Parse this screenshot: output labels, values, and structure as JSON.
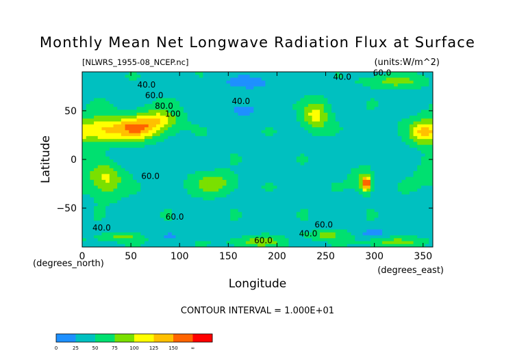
{
  "chart_data": {
    "type": "heatmap",
    "title": "Monthly Mean Net Longwave Radiation Flux at Surface",
    "subtitle_left": "[NLWRS_1955-08_NCEP.nc]",
    "subtitle_right": "(units:W/m^2)",
    "xlabel": "Longitude",
    "ylabel": "Latitude",
    "x_unit_label": "(degrees_east)",
    "y_unit_label": "(degrees_north)",
    "xlim": [
      0,
      360
    ],
    "ylim": [
      -90,
      90
    ],
    "x_ticks": [
      0,
      50,
      100,
      150,
      200,
      250,
      300,
      350
    ],
    "y_ticks": [
      50,
      0,
      -50
    ],
    "x_tick_labels": [
      "0",
      "50",
      "100",
      "150",
      "200",
      "250",
      "300",
      "350"
    ],
    "y_tick_labels": [
      "50",
      "0",
      "−50"
    ],
    "contour_interval_text": "CONTOUR INTERVAL = 1.000E+01",
    "contour_labels": [
      {
        "text": "40.0",
        "lon": 66,
        "lat": 74
      },
      {
        "text": "60.0",
        "lon": 74,
        "lat": 63
      },
      {
        "text": "80.0",
        "lon": 84,
        "lat": 52
      },
      {
        "text": "100",
        "lon": 93,
        "lat": 44
      },
      {
        "text": "40.0",
        "lon": 163,
        "lat": 57
      },
      {
        "text": "40.0",
        "lon": 267,
        "lat": 82
      },
      {
        "text": "60.0",
        "lon": 308,
        "lat": 86
      },
      {
        "text": "60.0",
        "lon": 70,
        "lat": -20
      },
      {
        "text": "60.0",
        "lon": 95,
        "lat": -62
      },
      {
        "text": "40.0",
        "lon": 20,
        "lat": -73
      },
      {
        "text": "60.0",
        "lon": 248,
        "lat": -70
      },
      {
        "text": "40.0",
        "lon": 232,
        "lat": -79
      },
      {
        "text": "60.0",
        "lon": 186,
        "lat": -86
      }
    ],
    "colorbar": {
      "tick_labels": [
        "0",
        "25",
        "50",
        "75",
        "100",
        "125",
        "150",
        "∞"
      ],
      "colors": [
        "#1e90ff",
        "#00c0c0",
        "#00e070",
        "#7ae000",
        "#ffff00",
        "#ffc000",
        "#ff6400",
        "#ff0000"
      ]
    },
    "field": {
      "description_values": "net longwave flux W/m^2",
      "background": 45,
      "features": [
        {
          "lon": 20,
          "lat": 30,
          "rlon": 22,
          "rlat": 14,
          "amp": 80
        },
        {
          "lon": 55,
          "lat": 32,
          "rlon": 20,
          "rlat": 12,
          "amp": 105
        },
        {
          "lon": 80,
          "lat": 40,
          "rlon": 18,
          "rlat": 12,
          "amp": 65
        },
        {
          "lon": 350,
          "lat": 28,
          "rlon": 14,
          "rlat": 12,
          "amp": 80
        },
        {
          "lon": 240,
          "lat": 45,
          "rlon": 12,
          "rlat": 14,
          "amp": 70
        },
        {
          "lon": 25,
          "lat": -20,
          "rlon": 16,
          "rlat": 16,
          "amp": 60
        },
        {
          "lon": 135,
          "lat": -25,
          "rlon": 20,
          "rlat": 10,
          "amp": 50
        },
        {
          "lon": 292,
          "lat": -25,
          "rlon": 5,
          "rlat": 8,
          "amp": 130
        },
        {
          "lon": 285,
          "lat": -20,
          "rlon": 10,
          "rlat": 10,
          "amp": 25
        },
        {
          "lon": 165,
          "lat": 50,
          "rlon": 14,
          "rlat": 6,
          "amp": -40
        },
        {
          "lon": 170,
          "lat": 80,
          "rlon": 20,
          "rlat": 6,
          "amp": -35
        },
        {
          "lon": 320,
          "lat": 80,
          "rlon": 30,
          "rlat": 6,
          "amp": 40
        },
        {
          "lon": 200,
          "lat": 75,
          "rlon": 60,
          "rlat": 10,
          "amp": -12
        },
        {
          "lon": 300,
          "lat": -75,
          "rlon": 12,
          "rlat": 5,
          "amp": -40
        },
        {
          "lon": 180,
          "lat": -85,
          "rlon": 25,
          "rlat": 5,
          "amp": 45
        },
        {
          "lon": 320,
          "lat": -85,
          "rlon": 30,
          "rlat": 4,
          "amp": 40
        },
        {
          "lon": 40,
          "lat": -80,
          "rlon": 25,
          "rlat": 4,
          "amp": 35
        },
        {
          "lon": 250,
          "lat": -78,
          "rlon": 20,
          "rlat": 4,
          "amp": 40
        },
        {
          "lon": 90,
          "lat": -78,
          "rlon": 30,
          "rlat": 4,
          "amp": -20
        },
        {
          "lon": 360,
          "lat": -10,
          "rlon": 20,
          "rlat": 20,
          "amp": 15
        },
        {
          "lon": 30,
          "lat": 5,
          "rlon": 40,
          "rlat": 15,
          "amp": -10
        },
        {
          "lon": 300,
          "lat": 10,
          "rlon": 40,
          "rlat": 15,
          "amp": -8
        }
      ]
    }
  }
}
